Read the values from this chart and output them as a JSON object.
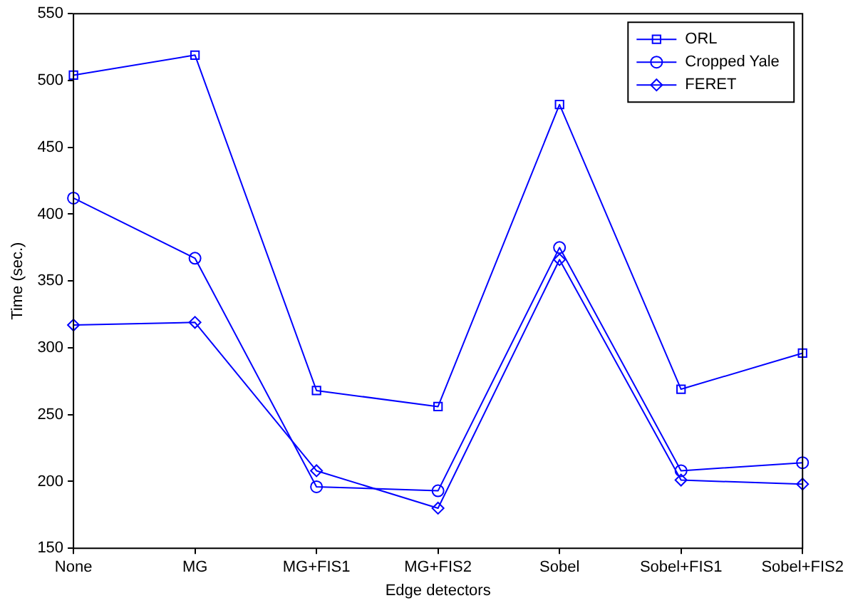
{
  "chart_data": {
    "type": "line",
    "xlabel": "Edge detectors",
    "ylabel": "Time (sec.)",
    "categories": [
      "None",
      "MG",
      "MG+FIS1",
      "MG+FIS2",
      "Sobel",
      "Sobel+FIS1",
      "Sobel+FIS2"
    ],
    "series": [
      {
        "name": "ORL",
        "color": "#0000ff",
        "marker": "square",
        "values": [
          504,
          519,
          268,
          256,
          482,
          269,
          296
        ]
      },
      {
        "name": "Cropped Yale",
        "color": "#0000ff",
        "marker": "circle",
        "values": [
          412,
          367,
          196,
          193,
          375,
          208,
          214
        ]
      },
      {
        "name": "FERET",
        "color": "#0000ff",
        "marker": "diamond",
        "values": [
          317,
          319,
          208,
          180,
          366,
          201,
          198
        ]
      }
    ],
    "ylim": [
      150,
      550
    ],
    "yticks": [
      150,
      200,
      250,
      300,
      350,
      400,
      450,
      500,
      550
    ],
    "grid": false,
    "legend": "top right",
    "line_style": "solid"
  }
}
